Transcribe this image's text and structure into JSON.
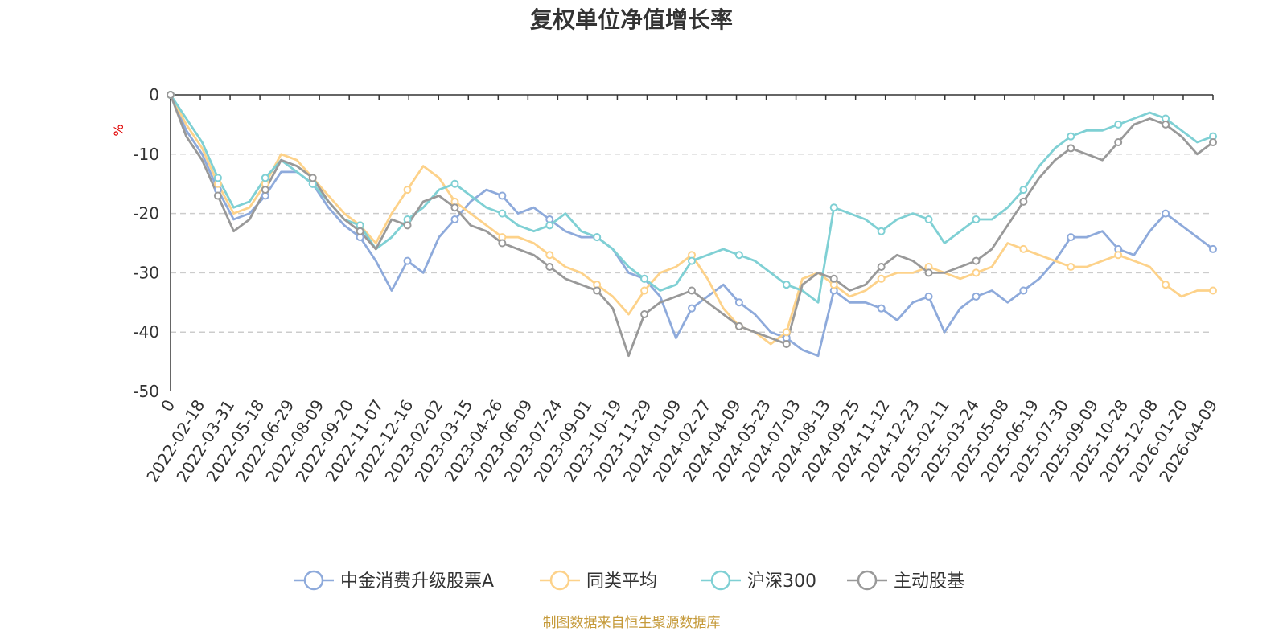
{
  "chart_data": {
    "type": "line",
    "title": "复权单位净值增长率",
    "ylabel": "%",
    "ylim": [
      -50,
      0
    ],
    "yticks": [
      0,
      -10,
      -20,
      -30,
      -40,
      -50
    ],
    "x_tick_labels": [
      "0",
      "2022-02-18",
      "2022-03-31",
      "2022-05-18",
      "2022-06-29",
      "2022-08-09",
      "2022-09-20",
      "2022-11-07",
      "2022-12-16",
      "2023-02-02",
      "2023-03-15",
      "2023-04-26",
      "2023-06-09",
      "2023-07-24",
      "2023-09-01",
      "2023-10-19",
      "2023-11-29",
      "2024-01-09",
      "2024-02-27",
      "2024-04-09",
      "2024-05-23",
      "2024-07-03",
      "2024-08-13",
      "2024-09-25",
      "2024-11-12",
      "2024-12-23",
      "2025-02-11",
      "2025-03-24",
      "2025-05-08",
      "2025-06-19",
      "2025-07-30",
      "2025-09-09",
      "2025-10-28",
      "2025-12-08",
      "2026-01-20",
      "2026-04-09"
    ],
    "source": "制图数据来自恒生聚源数据库",
    "series": [
      {
        "name": "中金消费升级股票A",
        "color": "#8eaadb",
        "values": [
          0,
          -6,
          -10,
          -16,
          -21,
          -20,
          -17,
          -13,
          -13,
          -15,
          -19,
          -22,
          -24,
          -28,
          -33,
          -28,
          -30,
          -24,
          -21,
          -18,
          -16,
          -17,
          -20,
          -19,
          -21,
          -23,
          -24,
          -24,
          -26,
          -30,
          -31,
          -34,
          -41,
          -36,
          -34,
          -32,
          -35,
          -37,
          -40,
          -41,
          -43,
          -44,
          -33,
          -35,
          -35,
          -36,
          -38,
          -35,
          -34,
          -40,
          -36,
          -34,
          -33,
          -35,
          -33,
          -31,
          -28,
          -24,
          -24,
          -23,
          -26,
          -27,
          -23,
          -20,
          -22,
          -24,
          -26
        ]
      },
      {
        "name": "同类平均",
        "color": "#fdd28a",
        "values": [
          0,
          -5,
          -9,
          -15,
          -20,
          -19,
          -15,
          -10,
          -11,
          -14,
          -17,
          -20,
          -22,
          -25,
          -20,
          -16,
          -12,
          -14,
          -18,
          -20,
          -22,
          -24,
          -24,
          -25,
          -27,
          -29,
          -30,
          -32,
          -34,
          -37,
          -33,
          -30,
          -29,
          -27,
          -31,
          -36,
          -39,
          -40,
          -42,
          -40,
          -31,
          -30,
          -32,
          -34,
          -33,
          -31,
          -30,
          -30,
          -29,
          -30,
          -31,
          -30,
          -29,
          -25,
          -26,
          -27,
          -28,
          -29,
          -29,
          -28,
          -27,
          -28,
          -29,
          -32,
          -34,
          -33,
          -33
        ]
      },
      {
        "name": "沪深300",
        "color": "#7fd0d4",
        "values": [
          0,
          -4,
          -8,
          -14,
          -19,
          -18,
          -14,
          -11,
          -13,
          -15,
          -18,
          -21,
          -22,
          -26,
          -24,
          -21,
          -19,
          -16,
          -15,
          -17,
          -19,
          -20,
          -22,
          -23,
          -22,
          -20,
          -23,
          -24,
          -26,
          -29,
          -31,
          -33,
          -32,
          -28,
          -27,
          -26,
          -27,
          -28,
          -30,
          -32,
          -33,
          -35,
          -19,
          -20,
          -21,
          -23,
          -21,
          -20,
          -21,
          -25,
          -23,
          -21,
          -21,
          -19,
          -16,
          -12,
          -9,
          -7,
          -6,
          -6,
          -5,
          -4,
          -3,
          -4,
          -6,
          -8,
          -7
        ]
      },
      {
        "name": "主动股基",
        "color": "#999999",
        "values": [
          0,
          -7,
          -11,
          -17,
          -23,
          -21,
          -16,
          -11,
          -12,
          -14,
          -18,
          -21,
          -23,
          -26,
          -21,
          -22,
          -18,
          -17,
          -19,
          -22,
          -23,
          -25,
          -26,
          -27,
          -29,
          -31,
          -32,
          -33,
          -36,
          -44,
          -37,
          -35,
          -34,
          -33,
          -35,
          -37,
          -39,
          -40,
          -41,
          -42,
          -32,
          -30,
          -31,
          -33,
          -32,
          -29,
          -27,
          -28,
          -30,
          -30,
          -29,
          -28,
          -26,
          -22,
          -18,
          -14,
          -11,
          -9,
          -10,
          -11,
          -8,
          -5,
          -4,
          -5,
          -7,
          -10,
          -8
        ]
      }
    ]
  }
}
